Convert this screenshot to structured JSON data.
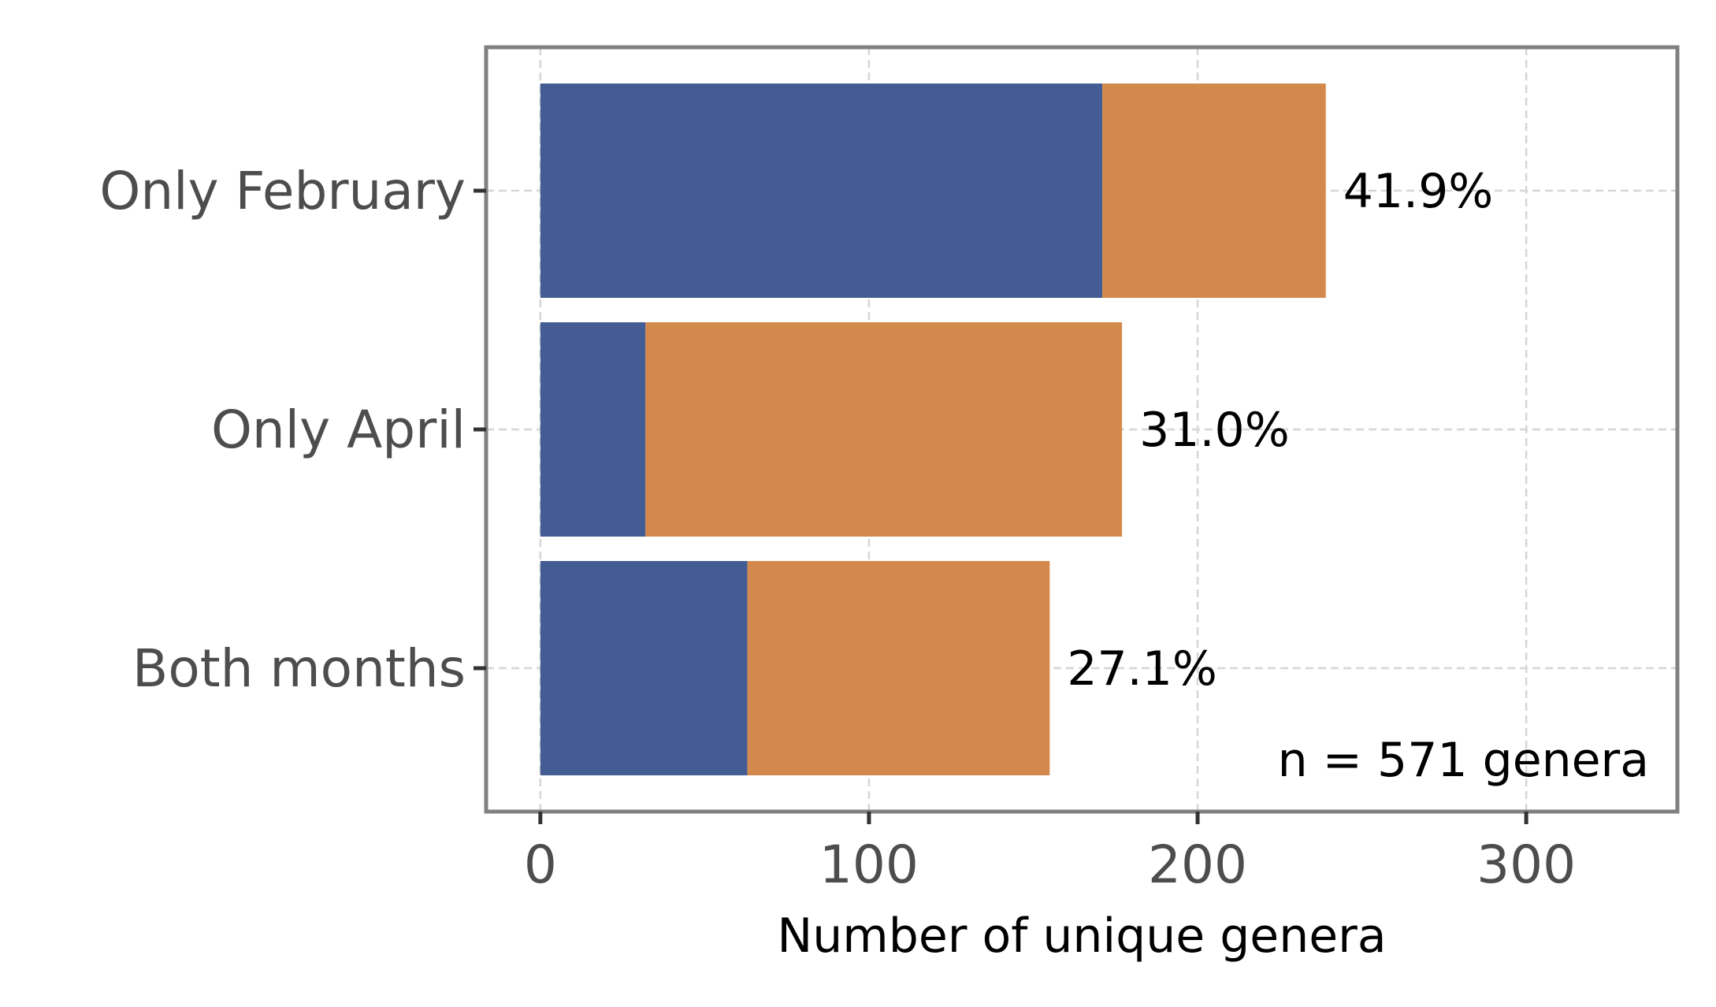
{
  "chart_data": {
    "type": "bar",
    "orientation": "horizontal",
    "stacked": true,
    "categories": [
      "Only February",
      "Only April",
      "Both months"
    ],
    "series": [
      {
        "values": [
          171,
          32,
          63
        ],
        "color": "#445c94"
      },
      {
        "values": [
          68,
          145,
          92
        ],
        "color": "#d4894c"
      }
    ],
    "data_labels": [
      "41.9%",
      "31.0%",
      "27.1%"
    ],
    "xlabel": "Number of unique genera",
    "ylabel": "",
    "xlim": [
      -16.5,
      346
    ],
    "xticks": [
      0,
      100,
      200,
      300
    ],
    "xtick_labels": [
      "0",
      "100",
      "200",
      "300"
    ],
    "grid": true,
    "annotation": "n = 571 genera",
    "annotation_position": "bottom-right"
  }
}
